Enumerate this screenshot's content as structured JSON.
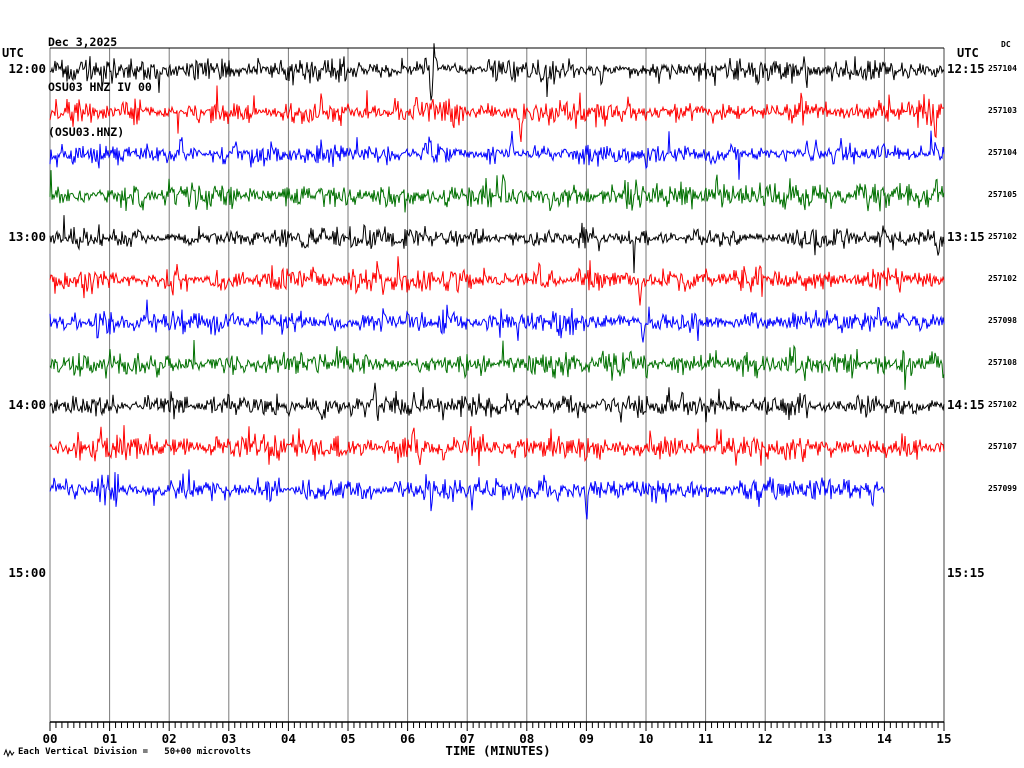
{
  "header": {
    "date": "Dec 3,2025",
    "station_line": "OSU03 HNZ IV 00",
    "channel_line": "(OSU03.HNZ)"
  },
  "labels": {
    "utc_left": "UTC",
    "utc_right": "UTC",
    "dc_header": "DC",
    "time_axis_label": "TIME (MINUTES)",
    "scale_note": "Each Vertical Division =   50+00 microvolts"
  },
  "chart_data": {
    "type": "line",
    "kind": "helicorder-seismogram",
    "title": "OSU03 HNZ IV 00 (OSU03.HNZ) Dec 3,2025",
    "xlabel": "TIME (MINUTES)",
    "x_range_minutes": [
      0,
      15
    ],
    "minutes_per_row": 15,
    "grid": true,
    "grid_color": "#7a7a7a",
    "axis_color": "#000000",
    "minute_ticks": [
      "00",
      "01",
      "02",
      "03",
      "04",
      "05",
      "06",
      "07",
      "08",
      "09",
      "10",
      "11",
      "12",
      "13",
      "14",
      "15"
    ],
    "minor_ticks_per_minute": 10,
    "trace_color_cycle": [
      "#000000",
      "#ff0000",
      "#0000ff",
      "#007000"
    ],
    "rows": [
      {
        "left_time": "12:00",
        "right_time": "12:15",
        "dc": "257104",
        "color": "#000000",
        "end_min": 15,
        "seed": 101,
        "amp": 5.0,
        "spikes": [
          [
            3.5,
            12
          ],
          [
            6.4,
            -26
          ],
          [
            6.45,
            16
          ],
          [
            9.25,
            -13
          ]
        ]
      },
      {
        "left_time": null,
        "right_time": null,
        "dc": "257103",
        "color": "#ff0000",
        "end_min": 15,
        "seed": 102,
        "amp": 5.3,
        "spikes": [
          [
            2.5,
            -13
          ],
          [
            4.55,
            13
          ],
          [
            5.0,
            15
          ],
          [
            7.9,
            -24
          ],
          [
            9.7,
            17
          ],
          [
            12.6,
            15
          ],
          [
            14.85,
            -22
          ]
        ]
      },
      {
        "left_time": null,
        "right_time": null,
        "dc": "257104",
        "color": "#0000ff",
        "end_min": 15,
        "seed": 103,
        "amp": 5.0,
        "spikes": [
          [
            2.2,
            16
          ],
          [
            3.1,
            18
          ],
          [
            5.15,
            14
          ],
          [
            7.75,
            22
          ],
          [
            10.0,
            -15
          ],
          [
            12.7,
            16
          ],
          [
            14.0,
            18
          ]
        ]
      },
      {
        "left_time": null,
        "right_time": null,
        "dc": "257105",
        "color": "#007000",
        "end_min": 15,
        "seed": 104,
        "amp": 5.5,
        "spikes": [
          [
            2.0,
            12
          ],
          [
            7.6,
            17
          ],
          [
            8.4,
            -13
          ],
          [
            11.2,
            15
          ]
        ]
      },
      {
        "left_time": "13:00",
        "right_time": "13:15",
        "dc": "257102",
        "color": "#000000",
        "end_min": 15,
        "seed": 105,
        "amp": 4.8,
        "spikes": [
          [
            6.3,
            12
          ],
          [
            9.8,
            -12
          ],
          [
            14.9,
            -20
          ]
        ]
      },
      {
        "left_time": null,
        "right_time": null,
        "dc": "257102",
        "color": "#ff0000",
        "end_min": 15,
        "seed": 106,
        "amp": 5.2,
        "spikes": [
          [
            5.5,
            18
          ],
          [
            5.6,
            -15
          ],
          [
            8.2,
            14
          ],
          [
            9.9,
            -22
          ],
          [
            11.0,
            12
          ]
        ]
      },
      {
        "left_time": null,
        "right_time": null,
        "dc": "257098",
        "color": "#0000ff",
        "end_min": 15,
        "seed": 107,
        "amp": 5.0,
        "spikes": [
          [
            6.0,
            12
          ],
          [
            9.95,
            -24
          ],
          [
            10.05,
            15
          ],
          [
            13.9,
            13
          ],
          [
            14.6,
            -12
          ]
        ]
      },
      {
        "left_time": null,
        "right_time": null,
        "dc": "257108",
        "color": "#007000",
        "end_min": 15,
        "seed": 108,
        "amp": 5.4,
        "spikes": [
          [
            1.8,
            -13
          ],
          [
            4.2,
            12
          ],
          [
            6.2,
            -12
          ],
          [
            12.5,
            13
          ]
        ]
      },
      {
        "left_time": "14:00",
        "right_time": "14:15",
        "dc": "257102",
        "color": "#000000",
        "end_min": 15,
        "seed": 109,
        "amp": 5.0,
        "spikes": [
          [
            4.0,
            -12
          ],
          [
            5.45,
            23
          ],
          [
            5.5,
            -13
          ],
          [
            10.6,
            13
          ],
          [
            14.5,
            -12
          ]
        ]
      },
      {
        "left_time": null,
        "right_time": null,
        "dc": "257107",
        "color": "#ff0000",
        "end_min": 15,
        "seed": 110,
        "amp": 5.3,
        "spikes": [
          [
            2.8,
            12
          ],
          [
            6.1,
            25
          ],
          [
            6.2,
            -19
          ],
          [
            6.6,
            -15
          ],
          [
            9.0,
            -12
          ]
        ]
      },
      {
        "left_time": null,
        "right_time": null,
        "dc": "257099",
        "color": "#0000ff",
        "end_min": 14,
        "seed": 111,
        "amp": 5.0,
        "spikes": [
          [
            5.8,
            12
          ],
          [
            8.3,
            21
          ],
          [
            9.0,
            -27
          ],
          [
            13.8,
            -15
          ]
        ]
      }
    ],
    "extra_hour_labels": [
      {
        "left_time": "15:00",
        "right_time": "15:15",
        "slot": 12
      }
    ]
  }
}
